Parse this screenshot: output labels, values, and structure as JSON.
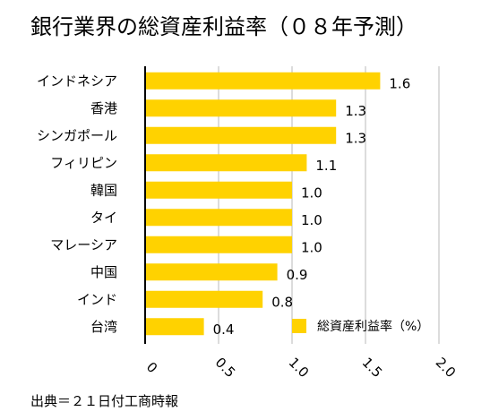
{
  "chart_data": {
    "type": "bar",
    "orientation": "horizontal",
    "title": "銀行業界の総資産利益率（０８年予測）",
    "categories": [
      "インドネシア",
      "香港",
      "シンガポール",
      "フィリピン",
      "韓国",
      "タイ",
      "マレーシア",
      "中国",
      "インド",
      "台湾"
    ],
    "series": [
      {
        "name": "総資産利益率（%）",
        "values": [
          1.6,
          1.3,
          1.3,
          1.1,
          1.0,
          1.0,
          1.0,
          0.9,
          0.8,
          0.4
        ],
        "value_labels": [
          "1.6",
          "1.3",
          "1.3",
          "1.1",
          "1.0",
          "1.0",
          "1.0",
          "0.9",
          "0.8",
          "0.4"
        ]
      }
    ],
    "xlim": [
      0,
      2.0
    ],
    "xticks": [
      0,
      0.5,
      1.0,
      1.5,
      2.0
    ],
    "xtick_labels": [
      "0",
      "0.5",
      "1.0",
      "1.5",
      "2.0"
    ],
    "grid": "vertical",
    "legend_position": "bottom-right",
    "bar_color": "#FFD200",
    "grid_color": "#B8B8B8"
  },
  "footer": {
    "source": "出典＝２１日付工商時報"
  }
}
